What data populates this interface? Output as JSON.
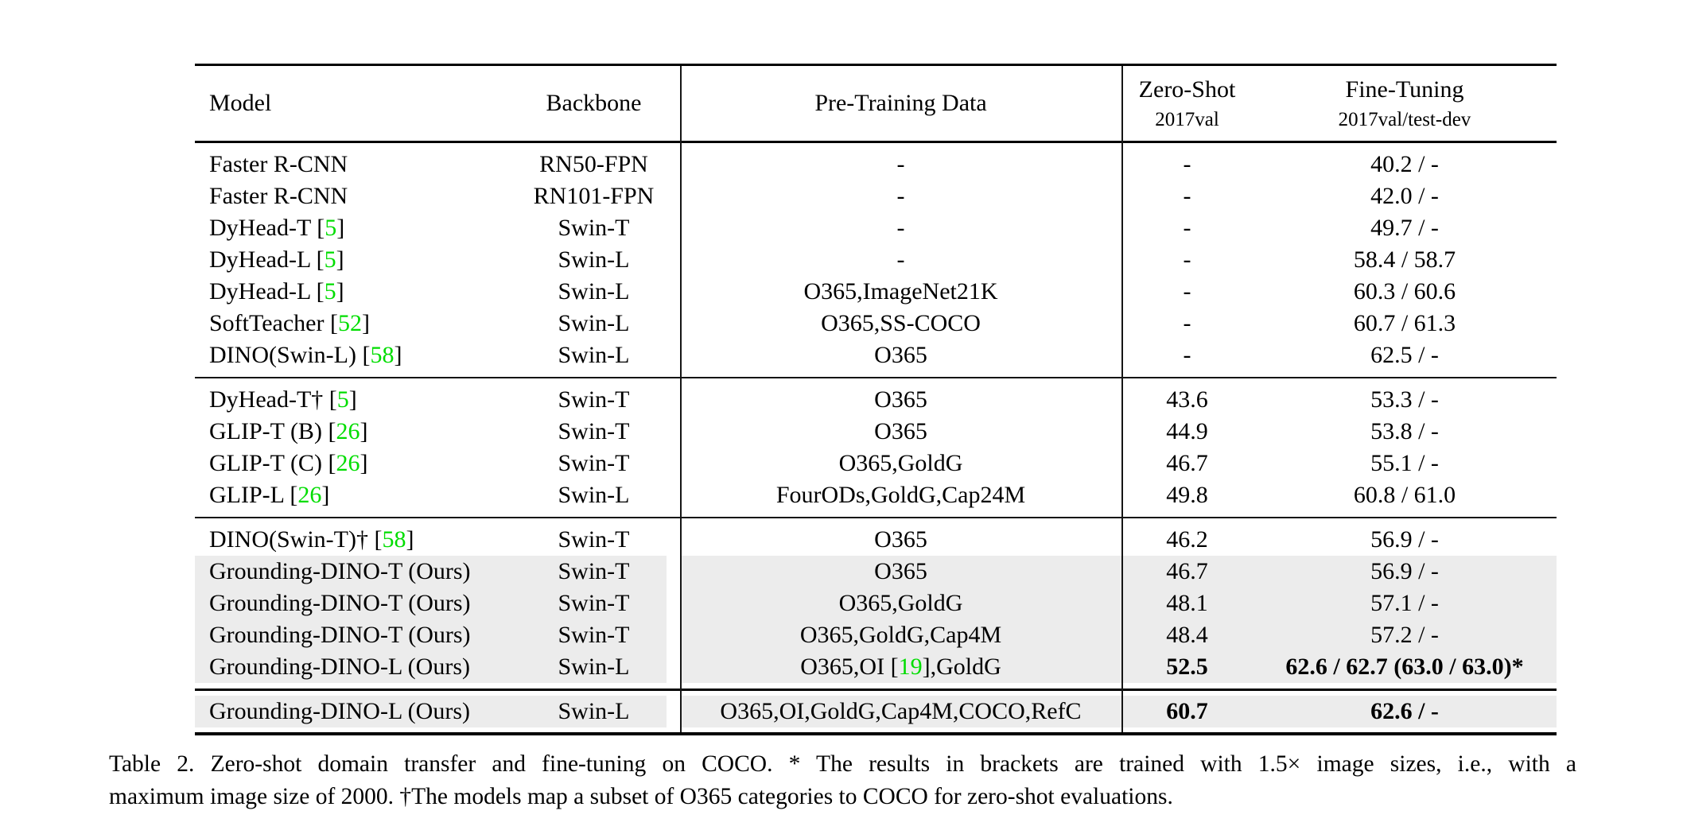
{
  "colors": {
    "citation_green": "#00dd00",
    "row_highlight_gray": "#ececec",
    "rule_black": "#000000"
  },
  "table": {
    "headers": {
      "model": "Model",
      "backbone": "Backbone",
      "pretrain": "Pre-Training Data",
      "zeroshot_top": "Zero-Shot",
      "zeroshot_sub": "2017val",
      "finetune_top": "Fine-Tuning",
      "finetune_sub": "2017val/test-dev"
    },
    "groups": [
      {
        "rows": [
          {
            "model": {
              "text": "Faster R-CNN"
            },
            "backbone": "RN50-FPN",
            "pretrain": "-",
            "zeroshot": "-",
            "finetune": "40.2 / -"
          },
          {
            "model": {
              "text": "Faster R-CNN"
            },
            "backbone": "RN101-FPN",
            "pretrain": "-",
            "zeroshot": "-",
            "finetune": "42.0 / -"
          },
          {
            "model": {
              "text": "DyHead-T ",
              "cite": "5"
            },
            "backbone": "Swin-T",
            "pretrain": "-",
            "zeroshot": "-",
            "finetune": "49.7 / -"
          },
          {
            "model": {
              "text": "DyHead-L ",
              "cite": "5"
            },
            "backbone": "Swin-L",
            "pretrain": "-",
            "zeroshot": "-",
            "finetune": "58.4 / 58.7"
          },
          {
            "model": {
              "text": "DyHead-L ",
              "cite": "5"
            },
            "backbone": "Swin-L",
            "pretrain": "O365,ImageNet21K",
            "zeroshot": "-",
            "finetune": "60.3 / 60.6"
          },
          {
            "model": {
              "text": "SoftTeacher ",
              "cite": "52"
            },
            "backbone": "Swin-L",
            "pretrain": "O365,SS-COCO",
            "zeroshot": "-",
            "finetune": "60.7 / 61.3"
          },
          {
            "model": {
              "text": "DINO(Swin-L) ",
              "cite": "58"
            },
            "backbone": "Swin-L",
            "pretrain": "O365",
            "zeroshot": "-",
            "finetune": "62.5 / -"
          }
        ]
      },
      {
        "rows": [
          {
            "model": {
              "text": "DyHead-T† ",
              "cite": "5"
            },
            "backbone": "Swin-T",
            "pretrain": "O365",
            "zeroshot": "43.6",
            "finetune": "53.3 / -"
          },
          {
            "model": {
              "text": "GLIP-T (B) ",
              "cite": "26"
            },
            "backbone": "Swin-T",
            "pretrain": "O365",
            "zeroshot": "44.9",
            "finetune": "53.8 / -"
          },
          {
            "model": {
              "text": "GLIP-T (C) ",
              "cite": "26"
            },
            "backbone": "Swin-T",
            "pretrain": "O365,GoldG",
            "zeroshot": "46.7",
            "finetune": "55.1 / -"
          },
          {
            "model": {
              "text": "GLIP-L ",
              "cite": "26"
            },
            "backbone": "Swin-L",
            "pretrain": "FourODs,GoldG,Cap24M",
            "zeroshot": "49.8",
            "finetune": "60.8 / 61.0"
          }
        ]
      },
      {
        "rows": [
          {
            "model": {
              "text": "DINO(Swin-T)† ",
              "cite": "58"
            },
            "backbone": "Swin-T",
            "pretrain": "O365",
            "zeroshot": "46.2",
            "finetune": "56.9 / -"
          },
          {
            "model": {
              "text": "Grounding-DINO-T (Ours)"
            },
            "backbone": "Swin-T",
            "pretrain": "O365",
            "zeroshot": "46.7",
            "finetune": "56.9 / -",
            "hl": true
          },
          {
            "model": {
              "text": "Grounding-DINO-T (Ours)"
            },
            "backbone": "Swin-T",
            "pretrain": "O365,GoldG",
            "zeroshot": "48.1",
            "finetune": "57.1 / -",
            "hl": true
          },
          {
            "model": {
              "text": "Grounding-DINO-T (Ours)"
            },
            "backbone": "Swin-T",
            "pretrain": "O365,GoldG,Cap4M",
            "zeroshot": "48.4",
            "finetune": "57.2 / -",
            "hl": true
          },
          {
            "model": {
              "text": "Grounding-DINO-L (Ours)"
            },
            "backbone": "Swin-L",
            "pretrain": {
              "before": "O365,OI ",
              "cite": "19",
              "after": ",GoldG"
            },
            "zeroshot": "52.5",
            "finetune": "62.6 / 62.7 (63.0 / 63.0)*",
            "hl": true,
            "bold": true
          }
        ]
      },
      {
        "rows": [
          {
            "model": {
              "text": "Grounding-DINO-L (Ours)"
            },
            "backbone": "Swin-L",
            "pretrain": "O365,OI,GoldG,Cap4M,COCO,RefC",
            "zeroshot": "60.7",
            "finetune": "62.6 / -",
            "hl": true,
            "bold": true
          }
        ]
      }
    ]
  },
  "caption": {
    "line1": "Table 2.  Zero-shot domain transfer and fine-tuning on COCO. * The results in brackets are trained with 1.5× image sizes, i.e., with a",
    "line2": "maximum image size of 2000. †The models map a subset of O365 categories to COCO for zero-shot evaluations."
  }
}
